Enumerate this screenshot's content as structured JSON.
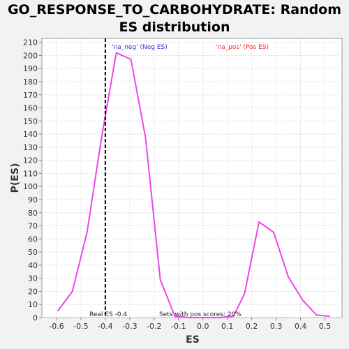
{
  "chart_data": {
    "type": "line",
    "title_line1": "GO_RESPONSE_TO_CARBOHYDRATE: Random",
    "title_line2": "ES distribution",
    "xlabel": "ES",
    "ylabel": "P(ES)",
    "xlim": [
      -0.66,
      0.57
    ],
    "ylim": [
      0,
      213
    ],
    "x_ticks": [
      -0.6,
      -0.5,
      -0.4,
      -0.3,
      -0.2,
      -0.1,
      0.0,
      0.1,
      0.2,
      0.3,
      0.4,
      0.5
    ],
    "x_tick_labels": [
      "-0.6",
      "-0.5",
      "-0.4",
      "-0.3",
      "-0.2",
      "-0.1",
      "0.0",
      "0.1",
      "0.2",
      "0.3",
      "0.4",
      "0.5"
    ],
    "y_ticks": [
      0,
      10,
      20,
      30,
      40,
      50,
      60,
      70,
      80,
      90,
      100,
      110,
      120,
      130,
      140,
      150,
      160,
      170,
      180,
      190,
      200,
      210
    ],
    "grid": true,
    "series": [
      {
        "color": "#ee44ee",
        "x": [
          -0.595,
          -0.535,
          -0.475,
          -0.415,
          -0.355,
          -0.295,
          -0.235,
          -0.175,
          -0.115,
          -0.055,
          0.005,
          0.065,
          0.125,
          0.17,
          0.23,
          0.29,
          0.35,
          0.41,
          0.465,
          0.52
        ],
        "y": [
          5,
          20,
          65,
          138,
          202,
          197,
          137,
          29,
          1,
          0,
          0,
          0,
          1,
          18,
          73,
          65,
          31,
          13,
          2,
          1
        ]
      }
    ],
    "real_es": -0.4,
    "annotations": {
      "neg_label": "'na_neg' (Neg ES)",
      "pos_label": "'na_pos' (Pos ES)",
      "real_es_label": "Real ES -0.4",
      "pos_scores_label": "Sets with pos scores: 20%"
    },
    "colors": {
      "neg": "#3333cc",
      "pos": "#dd3333",
      "line": "#ee44ee",
      "real_es_line": "#000000"
    }
  }
}
